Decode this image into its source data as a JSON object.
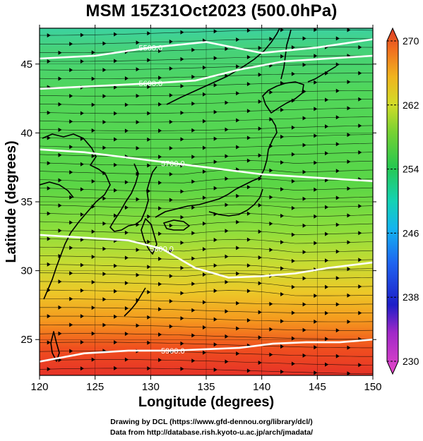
{
  "title": "MSM 15Z31Oct2023 (500.0hPa)",
  "credits": {
    "line1": "Drawing by DCL (https://www.gfd-dennou.org/library/dcl/)",
    "line2": "Data from http://database.rish.kyoto-u.ac.jp/arch/jmadata/"
  },
  "chart_data": {
    "type": "heatmap",
    "title": "MSM 15Z31Oct2023 (500.0hPa)",
    "xlabel": "Longitude (degrees)",
    "ylabel": "Latitude  (degrees)",
    "xlim": [
      120,
      150
    ],
    "ylim": [
      22.4,
      47.6
    ],
    "x_ticks": [
      "120",
      "125",
      "130",
      "135",
      "140",
      "145",
      "150"
    ],
    "y_ticks": [
      "25",
      "30",
      "35",
      "40",
      "45"
    ],
    "colorbar": {
      "range": [
        230,
        270
      ],
      "ticks": [
        "230",
        "238",
        "246",
        "254",
        "262",
        "270"
      ],
      "colors": [
        "#c800c8",
        "#2020e0",
        "#00b4ff",
        "#00e0b4",
        "#32c832",
        "#b4e632",
        "#f0c800",
        "#ff7800",
        "#e61e1e"
      ]
    },
    "field_samples_lat_vs_value": [
      [
        47.5,
        250
      ],
      [
        45,
        253
      ],
      [
        40,
        255
      ],
      [
        35,
        257
      ],
      [
        30,
        261
      ],
      [
        27,
        265
      ],
      [
        25,
        267
      ],
      [
        23,
        268
      ]
    ],
    "height_contours": [
      {
        "label": "5500.0",
        "points": [
          [
            120,
            45.4
          ],
          [
            125,
            45.6
          ],
          [
            130,
            46.2
          ],
          [
            135,
            46.6
          ],
          [
            140,
            45.8
          ],
          [
            145,
            46.2
          ],
          [
            150,
            46.8
          ]
        ]
      },
      {
        "label": "5600.0",
        "points": [
          [
            120,
            43.2
          ],
          [
            125,
            43.4
          ],
          [
            130,
            43.6
          ],
          [
            134,
            43.8
          ],
          [
            138,
            44.6
          ],
          [
            142,
            45.2
          ],
          [
            146,
            45.4
          ],
          [
            150,
            45.6
          ]
        ]
      },
      {
        "label": "5700.0",
        "points": [
          [
            120,
            38.8
          ],
          [
            124,
            38.6
          ],
          [
            128,
            38.2
          ],
          [
            132,
            37.8
          ],
          [
            136,
            37.4
          ],
          [
            140,
            37.0
          ],
          [
            144,
            36.8
          ],
          [
            148,
            36.6
          ],
          [
            150,
            36.5
          ]
        ]
      },
      {
        "label": "5800.0",
        "points": [
          [
            120,
            32.6
          ],
          [
            124,
            32.4
          ],
          [
            128,
            32.2
          ],
          [
            131,
            31.6
          ],
          [
            134,
            30.2
          ],
          [
            137,
            29.5
          ],
          [
            140,
            29.6
          ],
          [
            143,
            29.8
          ],
          [
            146,
            30.2
          ],
          [
            150,
            30.6
          ]
        ]
      },
      {
        "label": "5900.0",
        "points": [
          [
            120,
            23.4
          ],
          [
            124,
            24.0
          ],
          [
            128,
            24.2
          ],
          [
            132,
            24.2
          ],
          [
            135,
            24.3
          ],
          [
            138,
            24.4
          ],
          [
            141,
            24.7
          ],
          [
            144,
            24.8
          ],
          [
            147,
            24.8
          ],
          [
            150,
            25.0
          ]
        ]
      }
    ],
    "wind": "streamlines of 500 hPa wind, predominantly westerly (left to right)"
  }
}
